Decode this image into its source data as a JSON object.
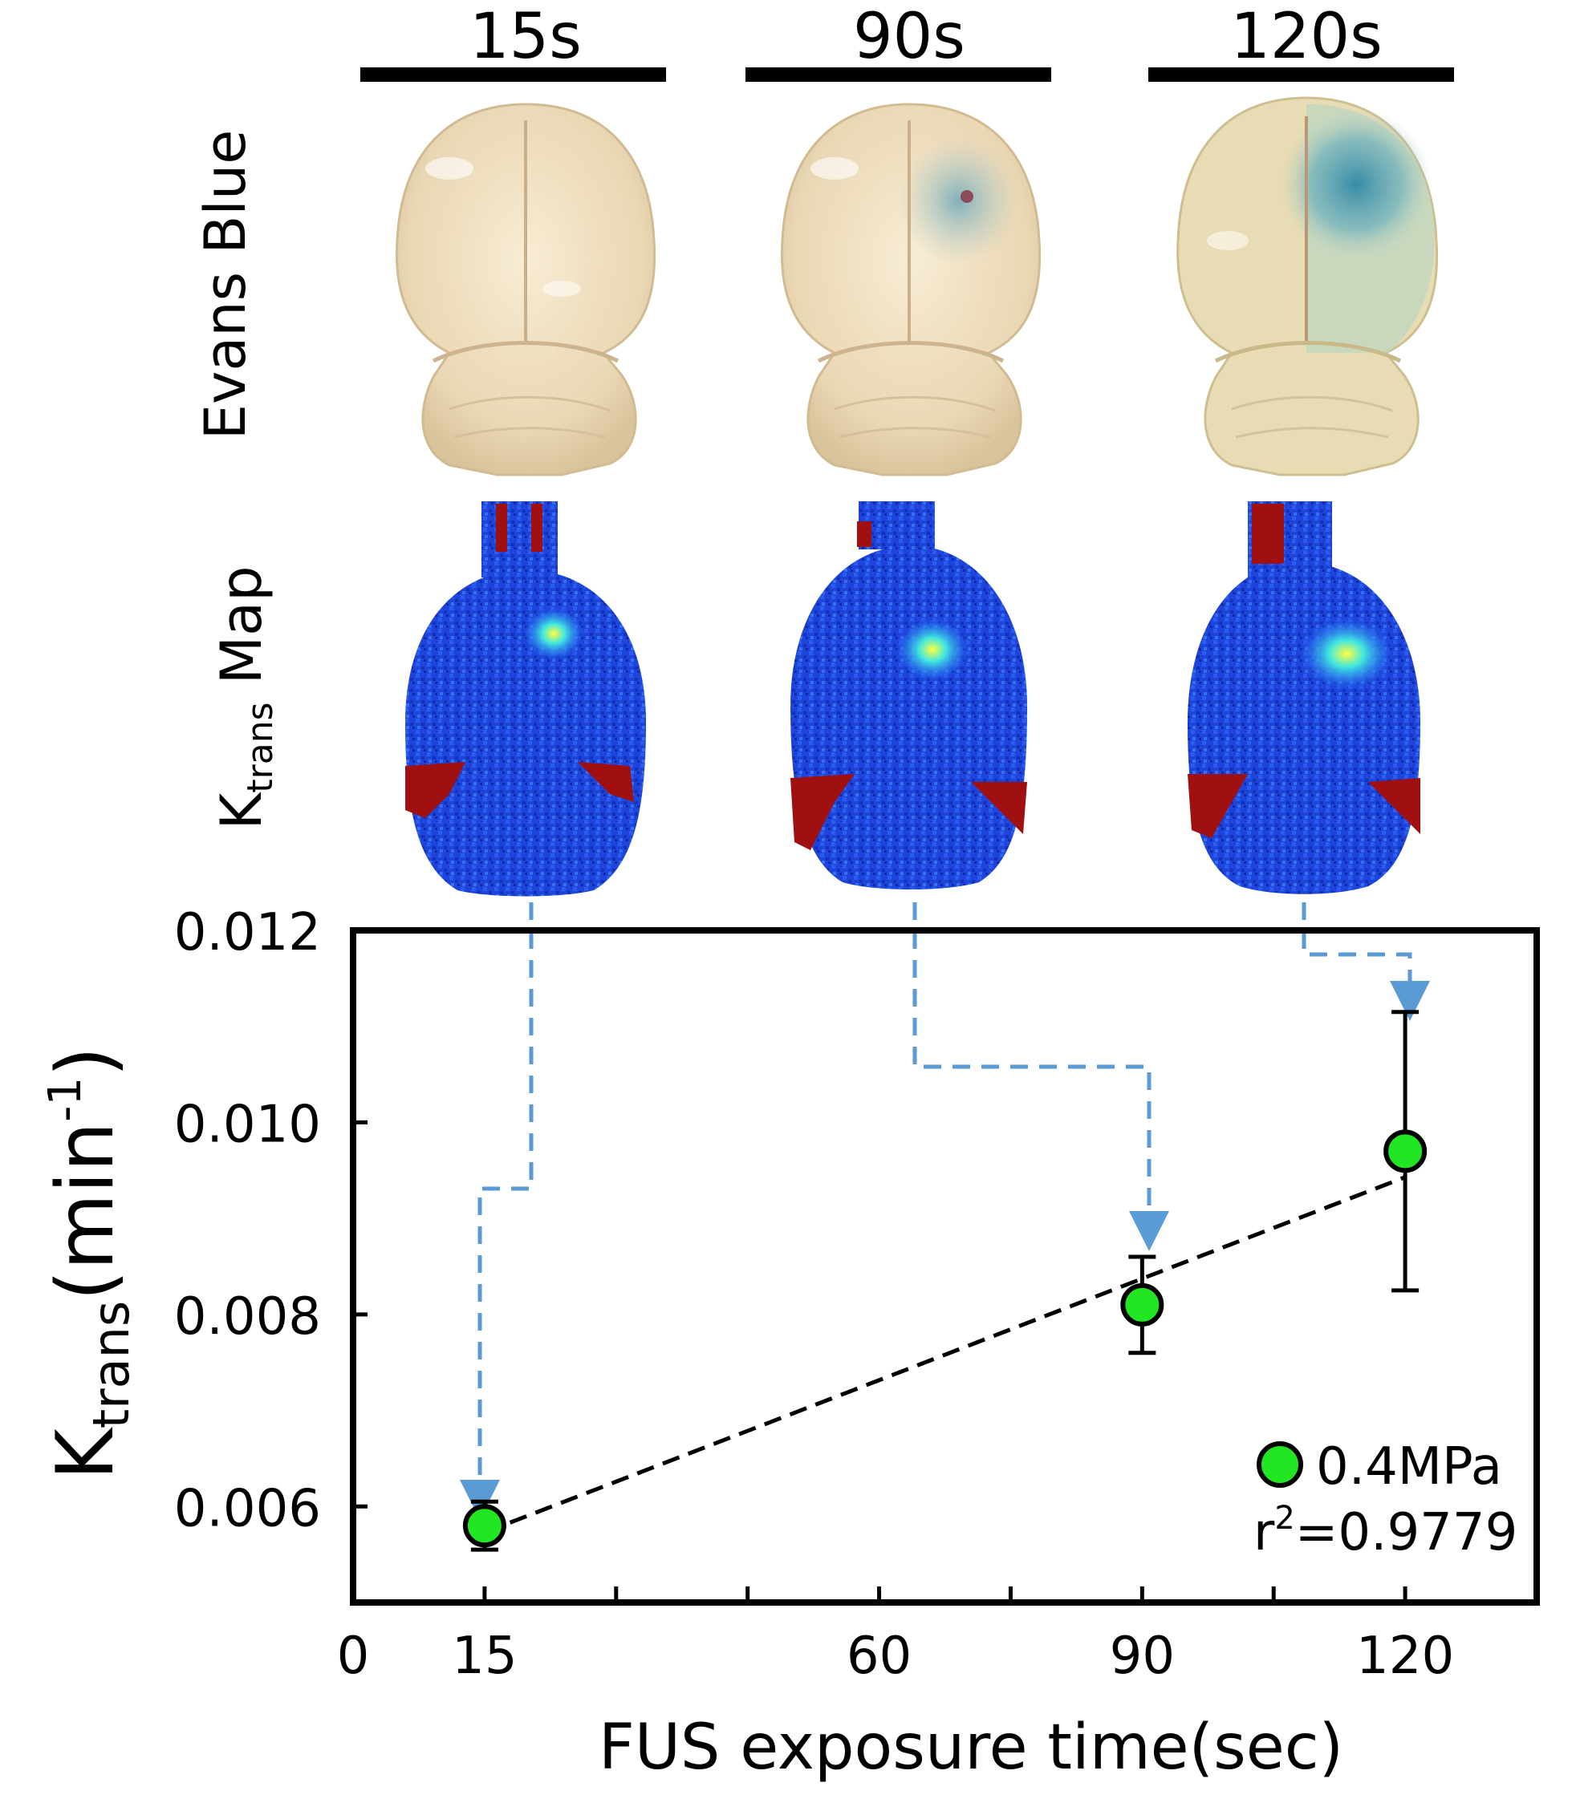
{
  "panel_titles": [
    "15s",
    "90s",
    "120s"
  ],
  "row_labels": {
    "evans_blue": "Evans Blue",
    "ktrans_main": "K",
    "ktrans_sub": "trans",
    "ktrans_rest": " Map"
  },
  "colors": {
    "marker_fill": "#22e622",
    "marker_edge": "#000000",
    "arrow": "#5b9bd5",
    "fit_line": "#000000",
    "map_background": "#1a3fd8",
    "map_hot": "#a01010",
    "brain_tissue": "#efdfc0",
    "evans_blue_stain": "#4a9ab0"
  },
  "chart_data": {
    "type": "scatter",
    "title": "",
    "xlabel": "FUS exposure time(sec)",
    "ylabel_main": "K",
    "ylabel_sub": "trans",
    "ylabel_rest": "(min",
    "ylabel_sup": "-1",
    "ylabel_close": ")",
    "xlim": [
      0,
      135
    ],
    "ylim": [
      0.005,
      0.012
    ],
    "xticks": [
      0,
      15,
      60,
      90,
      120
    ],
    "xtick_labels": [
      "0",
      "15",
      "60",
      "90",
      "120"
    ],
    "xminor": [
      30,
      45,
      75,
      105
    ],
    "yticks": [
      0.006,
      0.008,
      0.01,
      0.012
    ],
    "ytick_labels": [
      "0.006",
      "0.008",
      "0.010",
      "0.012"
    ],
    "series": [
      {
        "name": "0.4MPa",
        "x": [
          15,
          90,
          120
        ],
        "y": [
          0.0058,
          0.0081,
          0.0097
        ],
        "err": [
          0.00025,
          0.0005,
          0.00145
        ]
      }
    ],
    "fit": {
      "x": [
        15,
        120
      ],
      "y": [
        0.00573,
        0.00943
      ]
    },
    "legend": {
      "label": "0.4MPa",
      "position": "bottom-right"
    },
    "annotation_main": "r",
    "annotation_sup": "2",
    "annotation_rest": "=0.9779"
  }
}
